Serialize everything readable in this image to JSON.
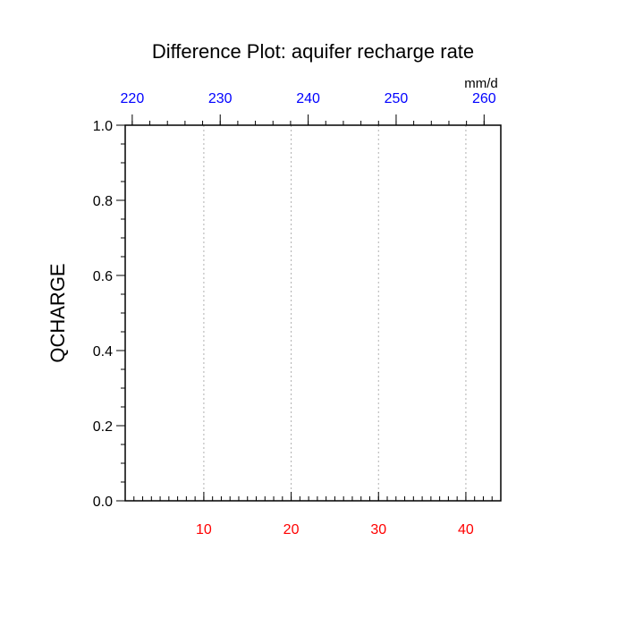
{
  "chart_data": {
    "type": "line",
    "title": "Difference Plot: aquifer recharge rate",
    "ylabel": "QCHARGE",
    "top_axis_units": "mm/d",
    "series": [],
    "ylim": [
      0.0,
      1.0
    ],
    "y_ticks": [
      "0.0",
      "0.2",
      "0.4",
      "0.6",
      "0.8",
      "1.0"
    ],
    "xlim_bottom": [
      1,
      44
    ],
    "x_ticks_bottom": [
      "10",
      "20",
      "30",
      "40"
    ],
    "xlim_top": [
      219.2,
      261.9
    ],
    "x_ticks_top": [
      "220",
      "230",
      "240",
      "250",
      "260"
    ],
    "grid": "vertical dashed at bottom-axis major ticks",
    "colors": {
      "bottom_axis_labels": "#ff0000",
      "top_axis_labels": "#0000ff",
      "axes": "#000000",
      "grid": "#b0b0b0"
    }
  }
}
